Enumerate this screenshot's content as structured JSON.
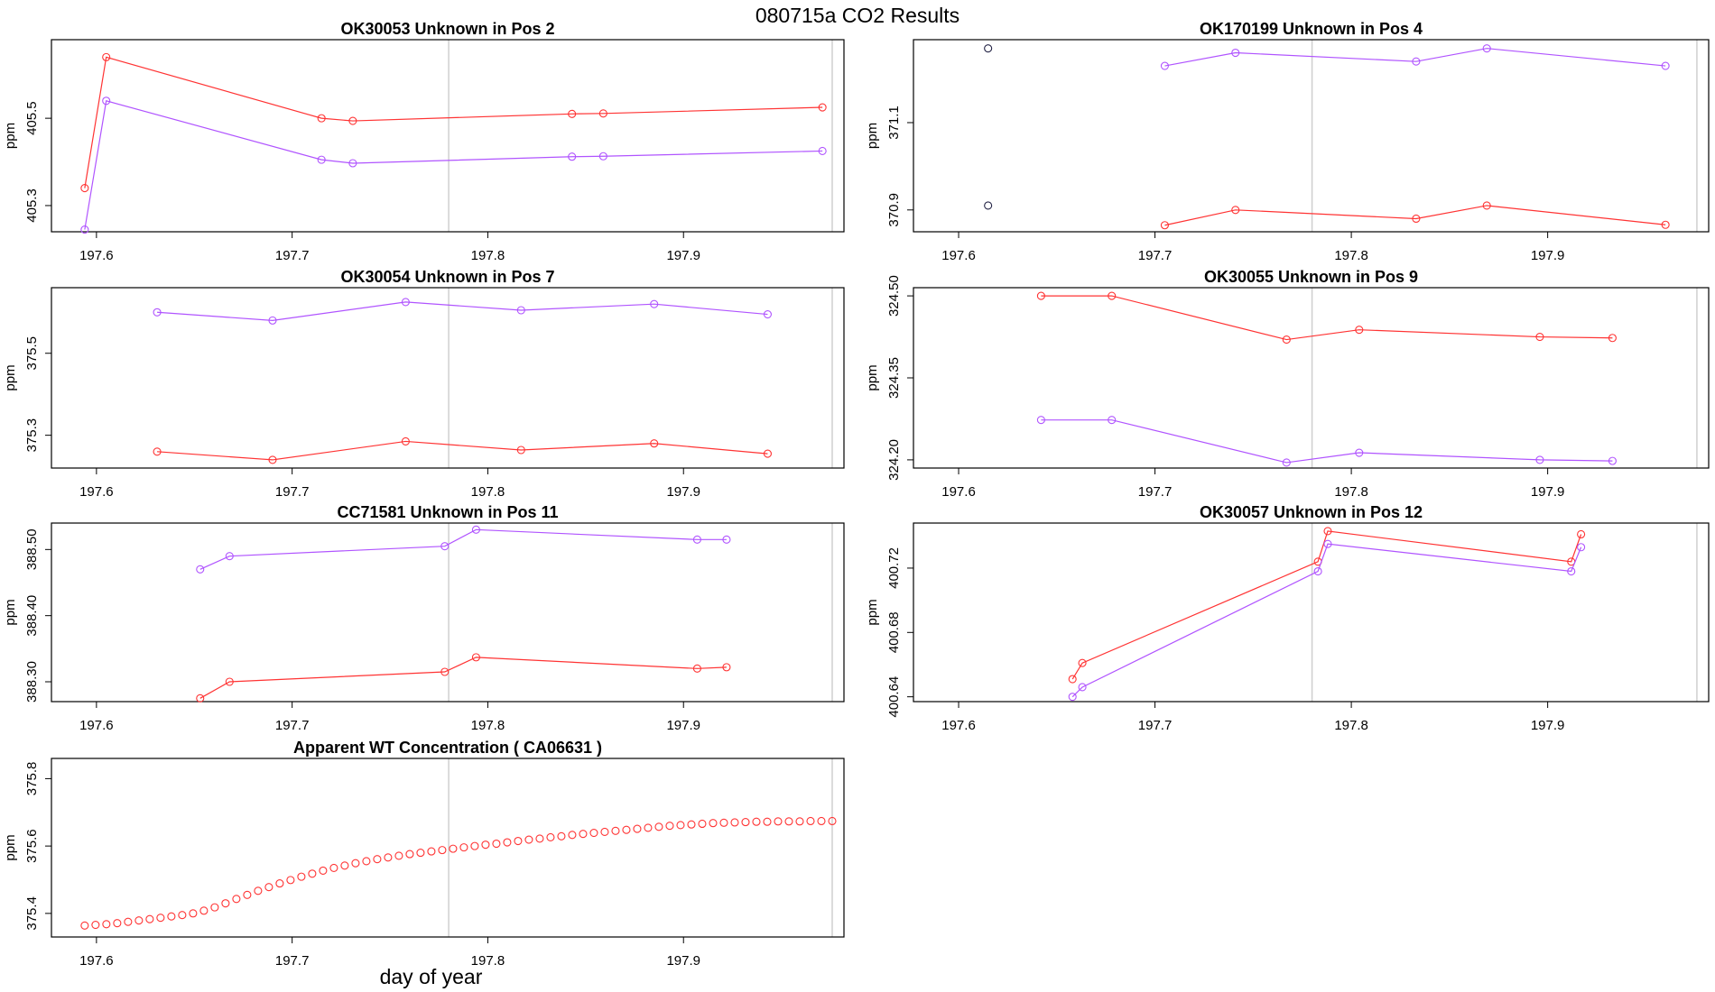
{
  "page": {
    "title": "080715a  CO2 Results",
    "xlabel": "day of year"
  },
  "colors": {
    "series_red": "#ff3333",
    "series_purple": "#b054ff",
    "series_black": "#222244",
    "vline": "#cfcfcf",
    "frame": "#000000"
  },
  "chart_data": [
    {
      "type": "line",
      "title": "OK30053    Unknown in Pos 2",
      "ylabel": "ppm",
      "xlim": [
        197.577,
        197.982
      ],
      "ylim": [
        405.24,
        405.68
      ],
      "xticks": [
        "197.6",
        "197.7",
        "197.8",
        "197.9"
      ],
      "yticks": [
        "405.3",
        "405.5"
      ],
      "vlines": [
        197.78,
        197.976
      ],
      "series": [
        {
          "color": "red",
          "x": [
            197.594,
            197.605,
            197.715,
            197.731,
            197.843,
            197.859,
            197.971
          ],
          "y": [
            405.34,
            405.64,
            405.5,
            405.494,
            405.51,
            405.511,
            405.525
          ]
        },
        {
          "color": "purple",
          "x": [
            197.594,
            197.605,
            197.715,
            197.731,
            197.843,
            197.859,
            197.971
          ],
          "y": [
            405.245,
            405.54,
            405.405,
            405.397,
            405.412,
            405.413,
            405.425
          ]
        }
      ]
    },
    {
      "type": "line",
      "title": "OK170199    Unknown in Pos 4",
      "ylabel": "ppm",
      "xlim": [
        197.577,
        197.982
      ],
      "ylim": [
        370.85,
        371.29
      ],
      "xticks": [
        "197.6",
        "197.7",
        "197.8",
        "197.9"
      ],
      "yticks": [
        "370.9",
        "371.1"
      ],
      "vlines": [
        197.78,
        197.976
      ],
      "series": [
        {
          "color": "purple",
          "x": [
            197.705,
            197.741,
            197.833,
            197.869,
            197.96
          ],
          "y": [
            371.23,
            371.26,
            371.24,
            371.27,
            371.23
          ]
        },
        {
          "color": "red",
          "x": [
            197.705,
            197.741,
            197.833,
            197.869,
            197.96
          ],
          "y": [
            370.865,
            370.9,
            370.88,
            370.91,
            370.866
          ]
        },
        {
          "color": "black",
          "line": false,
          "x": [
            197.615,
            197.615
          ],
          "y": [
            371.27,
            370.91
          ]
        }
      ]
    },
    {
      "type": "line",
      "title": "OK30054    Unknown in Pos 7",
      "ylabel": "ppm",
      "xlim": [
        197.577,
        197.982
      ],
      "ylim": [
        375.22,
        375.66
      ],
      "xticks": [
        "197.6",
        "197.7",
        "197.8",
        "197.9"
      ],
      "yticks": [
        "375.3",
        "375.5"
      ],
      "vlines": [
        197.78,
        197.976
      ],
      "series": [
        {
          "color": "purple",
          "x": [
            197.631,
            197.69,
            197.758,
            197.817,
            197.885,
            197.943
          ],
          "y": [
            375.6,
            375.58,
            375.625,
            375.605,
            375.62,
            375.595
          ]
        },
        {
          "color": "red",
          "x": [
            197.631,
            197.69,
            197.758,
            197.817,
            197.885,
            197.943
          ],
          "y": [
            375.26,
            375.24,
            375.285,
            375.264,
            375.28,
            375.255
          ]
        }
      ]
    },
    {
      "type": "line",
      "title": "OK30055    Unknown in Pos 9",
      "ylabel": "ppm",
      "xlim": [
        197.577,
        197.982
      ],
      "ylim": [
        324.185,
        324.515
      ],
      "xticks": [
        "197.6",
        "197.7",
        "197.8",
        "197.9"
      ],
      "yticks": [
        "324.20",
        "324.35",
        "324.50"
      ],
      "vlines": [
        197.78,
        197.976
      ],
      "series": [
        {
          "color": "red",
          "x": [
            197.642,
            197.678,
            197.767,
            197.804,
            197.896,
            197.933
          ],
          "y": [
            324.5,
            324.5,
            324.42,
            324.438,
            324.425,
            324.423
          ]
        },
        {
          "color": "purple",
          "x": [
            197.642,
            197.678,
            197.767,
            197.804,
            197.896,
            197.933
          ],
          "y": [
            324.273,
            324.273,
            324.195,
            324.213,
            324.2,
            324.198
          ]
        }
      ]
    },
    {
      "type": "line",
      "title": "CC71581    Unknown in Pos 11",
      "ylabel": "ppm",
      "xlim": [
        197.577,
        197.982
      ],
      "ylim": [
        388.27,
        388.54
      ],
      "xticks": [
        "197.6",
        "197.7",
        "197.8",
        "197.9"
      ],
      "yticks": [
        "388.30",
        "388.40",
        "388.50"
      ],
      "vlines": [
        197.78,
        197.976
      ],
      "series": [
        {
          "color": "purple",
          "x": [
            197.653,
            197.668,
            197.778,
            197.794,
            197.907,
            197.922
          ],
          "y": [
            388.47,
            388.49,
            388.505,
            388.53,
            388.515,
            388.515
          ]
        },
        {
          "color": "red",
          "x": [
            197.653,
            197.668,
            197.778,
            197.794,
            197.907,
            197.922
          ],
          "y": [
            388.275,
            388.3,
            388.315,
            388.337,
            388.32,
            388.322
          ]
        }
      ]
    },
    {
      "type": "line",
      "title": "OK30057    Unknown in Pos 12",
      "ylabel": "ppm",
      "xlim": [
        197.577,
        197.982
      ],
      "ylim": [
        400.637,
        400.748
      ],
      "xticks": [
        "197.6",
        "197.7",
        "197.8",
        "197.9"
      ],
      "yticks": [
        "400.64",
        "400.68",
        "400.72"
      ],
      "vlines": [
        197.78,
        197.976
      ],
      "series": [
        {
          "color": "red",
          "x": [
            197.658,
            197.663,
            197.783,
            197.788,
            197.912,
            197.917
          ],
          "y": [
            400.651,
            400.661,
            400.724,
            400.743,
            400.724,
            400.741
          ]
        },
        {
          "color": "purple",
          "x": [
            197.658,
            197.663,
            197.783,
            197.788,
            197.912,
            197.917
          ],
          "y": [
            400.64,
            400.646,
            400.718,
            400.735,
            400.718,
            400.733
          ]
        }
      ]
    },
    {
      "type": "scatter",
      "title": "Apparent WT Concentration ( CA06631 )",
      "ylabel": "ppm",
      "xlim": [
        197.577,
        197.982
      ],
      "ylim": [
        375.33,
        375.86
      ],
      "xticks": [
        "197.6",
        "197.7",
        "197.8",
        "197.9"
      ],
      "yticks": [
        "375.4",
        "375.6",
        "375.8"
      ],
      "vlines": [
        197.78,
        197.976
      ],
      "series": [
        {
          "color": "red",
          "line": false,
          "x_start": 197.594,
          "x_end": 197.976,
          "y": [
            375.364,
            375.366,
            375.368,
            375.371,
            375.375,
            375.379,
            375.383,
            375.387,
            375.391,
            375.395,
            375.4,
            375.408,
            375.418,
            375.43,
            375.443,
            375.455,
            375.467,
            375.478,
            375.489,
            375.499,
            375.509,
            375.518,
            375.527,
            375.535,
            375.542,
            375.549,
            375.555,
            375.561,
            375.566,
            375.571,
            375.576,
            375.58,
            375.584,
            375.588,
            375.592,
            375.596,
            375.6,
            375.604,
            375.607,
            375.611,
            375.615,
            375.619,
            375.622,
            375.626,
            375.629,
            375.633,
            375.636,
            375.639,
            375.642,
            375.645,
            375.648,
            375.651,
            375.654,
            375.657,
            375.66,
            375.662,
            375.664,
            375.666,
            375.668,
            375.669,
            375.67,
            375.671,
            375.672,
            375.672,
            375.673,
            375.673,
            375.673,
            375.674,
            375.674,
            375.674
          ]
        }
      ]
    }
  ]
}
